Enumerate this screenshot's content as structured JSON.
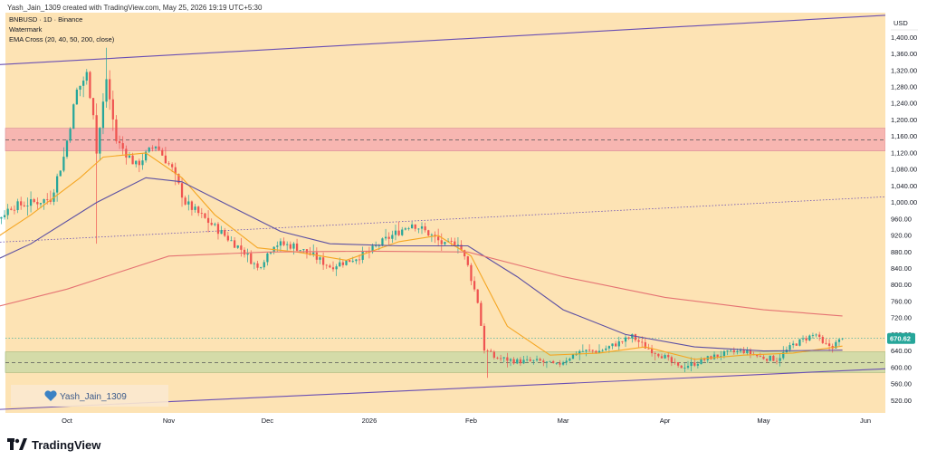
{
  "header": {
    "credit": "Yash_Jain_1309 created with TradingView.com, May 25, 2026 19:19 UTC+5:30",
    "symbol_line": "BNBUSD · 1D · Binance",
    "watermark_label": "Watermark",
    "indicator_label": "EMA Cross (20, 40, 50, 200, close)"
  },
  "watermark_text": "Yash_Jain_1309",
  "brand": {
    "name": "TradingView",
    "icon": "tradingview-logo-icon"
  },
  "currency_label": "USD",
  "colors": {
    "background": "#fde3b4",
    "up": "#26a69a",
    "down": "#ef5350",
    "ema_fast": "#f5a623",
    "ema_mid": "#5b4fa3",
    "ema_slow": "#e57373",
    "channel": "#6a4fb3",
    "resistance_zone": "#f4a7b0",
    "support_zone": "#c5d8a4",
    "price_badge": "#26a69a"
  },
  "chart_data": {
    "type": "candlestick",
    "title": "BNBUSD · 1D · Binance",
    "symbol": "BNBUSD",
    "interval": "1D",
    "exchange": "Binance",
    "ylim": [
      490,
      1460
    ],
    "y_ticks": [
      520,
      560,
      600,
      640,
      680,
      720,
      760,
      800,
      840,
      880,
      920,
      960,
      1000,
      1040,
      1080,
      1120,
      1160,
      1200,
      1240,
      1280,
      1320,
      1360,
      1400
    ],
    "y_tick_labels": [
      "520.00",
      "560.00",
      "600.00",
      "640.00",
      "680.00",
      "720.00",
      "760.00",
      "800.00",
      "840.00",
      "880.00",
      "920.00",
      "960.00",
      "1,000.00",
      "1,040.00",
      "1,080.00",
      "1,120.00",
      "1,160.00",
      "1,200.00",
      "1,240.00",
      "1,280.00",
      "1,320.00",
      "1,360.00",
      "1,400.00"
    ],
    "x_ticks": [
      {
        "label": "Oct",
        "date": "2025-10-01"
      },
      {
        "label": "Nov",
        "date": "2025-11-01"
      },
      {
        "label": "Dec",
        "date": "2025-12-01"
      },
      {
        "label": "2026",
        "date": "2026-01-01"
      },
      {
        "label": "Feb",
        "date": "2026-02-01"
      },
      {
        "label": "Mar",
        "date": "2026-03-01"
      },
      {
        "label": "Apr",
        "date": "2026-04-01"
      },
      {
        "label": "May",
        "date": "2026-05-01"
      },
      {
        "label": "Jun",
        "date": "2026-06-01"
      }
    ],
    "last_price": 670.62,
    "last_price_label": "670.62",
    "price_keypoints": [
      {
        "date": "2025-09-01",
        "close": 915
      },
      {
        "date": "2025-09-08",
        "close": 945
      },
      {
        "date": "2025-09-14",
        "close": 990
      },
      {
        "date": "2025-09-21",
        "close": 1000
      },
      {
        "date": "2025-09-26",
        "close": 1010
      },
      {
        "date": "2025-09-30",
        "close": 1110
      },
      {
        "date": "2025-10-04",
        "close": 1270
      },
      {
        "date": "2025-10-07",
        "close": 1310
      },
      {
        "date": "2025-10-09",
        "close": 1220
      },
      {
        "date": "2025-10-10",
        "close": 1120
      },
      {
        "date": "2025-10-13",
        "close": 1300
      },
      {
        "date": "2025-10-16",
        "close": 1150
      },
      {
        "date": "2025-10-22",
        "close": 1090
      },
      {
        "date": "2025-10-28",
        "close": 1140
      },
      {
        "date": "2025-11-02",
        "close": 1080
      },
      {
        "date": "2025-11-06",
        "close": 1000
      },
      {
        "date": "2025-11-12",
        "close": 960
      },
      {
        "date": "2025-11-18",
        "close": 920
      },
      {
        "date": "2025-11-24",
        "close": 880
      },
      {
        "date": "2025-11-28",
        "close": 840
      },
      {
        "date": "2025-12-03",
        "close": 900
      },
      {
        "date": "2025-12-09",
        "close": 895
      },
      {
        "date": "2025-12-15",
        "close": 870
      },
      {
        "date": "2025-12-20",
        "close": 845
      },
      {
        "date": "2025-12-26",
        "close": 860
      },
      {
        "date": "2026-01-01",
        "close": 880
      },
      {
        "date": "2026-01-06",
        "close": 910
      },
      {
        "date": "2026-01-10",
        "close": 930
      },
      {
        "date": "2026-01-14",
        "close": 950
      },
      {
        "date": "2026-01-19",
        "close": 925
      },
      {
        "date": "2026-01-24",
        "close": 895
      },
      {
        "date": "2026-01-28",
        "close": 905
      },
      {
        "date": "2026-01-31",
        "close": 845
      },
      {
        "date": "2026-02-03",
        "close": 760
      },
      {
        "date": "2026-02-05",
        "close": 645
      },
      {
        "date": "2026-02-08",
        "close": 625
      },
      {
        "date": "2026-02-15",
        "close": 615
      },
      {
        "date": "2026-02-22",
        "close": 615
      },
      {
        "date": "2026-02-27",
        "close": 605
      },
      {
        "date": "2026-03-06",
        "close": 640
      },
      {
        "date": "2026-03-12",
        "close": 640
      },
      {
        "date": "2026-03-18",
        "close": 660
      },
      {
        "date": "2026-03-22",
        "close": 675
      },
      {
        "date": "2026-03-26",
        "close": 650
      },
      {
        "date": "2026-04-01",
        "close": 625
      },
      {
        "date": "2026-04-05",
        "close": 600
      },
      {
        "date": "2026-04-10",
        "close": 610
      },
      {
        "date": "2026-04-15",
        "close": 625
      },
      {
        "date": "2026-04-20",
        "close": 635
      },
      {
        "date": "2026-04-25",
        "close": 640
      },
      {
        "date": "2026-04-30",
        "close": 625
      },
      {
        "date": "2026-05-05",
        "close": 620
      },
      {
        "date": "2026-05-10",
        "close": 655
      },
      {
        "date": "2026-05-15",
        "close": 675
      },
      {
        "date": "2026-05-17",
        "close": 680
      },
      {
        "date": "2026-05-19",
        "close": 655
      },
      {
        "date": "2026-05-22",
        "close": 652
      },
      {
        "date": "2026-05-25",
        "close": 670.62
      }
    ],
    "series": [
      {
        "name": "EMA 20",
        "color": "#f5a623",
        "points": [
          {
            "date": "2025-09-01",
            "y": 870
          },
          {
            "date": "2025-09-20",
            "y": 970
          },
          {
            "date": "2025-10-05",
            "y": 1060
          },
          {
            "date": "2025-10-12",
            "y": 1110
          },
          {
            "date": "2025-10-25",
            "y": 1120
          },
          {
            "date": "2025-11-05",
            "y": 1060
          },
          {
            "date": "2025-11-15",
            "y": 970
          },
          {
            "date": "2025-11-28",
            "y": 890
          },
          {
            "date": "2025-12-10",
            "y": 880
          },
          {
            "date": "2025-12-25",
            "y": 860
          },
          {
            "date": "2026-01-10",
            "y": 905
          },
          {
            "date": "2026-01-22",
            "y": 920
          },
          {
            "date": "2026-02-01",
            "y": 870
          },
          {
            "date": "2026-02-12",
            "y": 700
          },
          {
            "date": "2026-02-25",
            "y": 630
          },
          {
            "date": "2026-03-12",
            "y": 635
          },
          {
            "date": "2026-03-26",
            "y": 650
          },
          {
            "date": "2026-04-10",
            "y": 620
          },
          {
            "date": "2026-04-25",
            "y": 630
          },
          {
            "date": "2026-05-10",
            "y": 635
          },
          {
            "date": "2026-05-25",
            "y": 652
          }
        ]
      },
      {
        "name": "EMA 50",
        "color": "#5b4fa3",
        "points": [
          {
            "date": "2025-09-01",
            "y": 830
          },
          {
            "date": "2025-09-20",
            "y": 900
          },
          {
            "date": "2025-10-10",
            "y": 1000
          },
          {
            "date": "2025-10-25",
            "y": 1060
          },
          {
            "date": "2025-11-05",
            "y": 1050
          },
          {
            "date": "2025-11-20",
            "y": 990
          },
          {
            "date": "2025-12-05",
            "y": 930
          },
          {
            "date": "2025-12-20",
            "y": 900
          },
          {
            "date": "2026-01-10",
            "y": 895
          },
          {
            "date": "2026-01-31",
            "y": 895
          },
          {
            "date": "2026-02-15",
            "y": 820
          },
          {
            "date": "2026-03-01",
            "y": 740
          },
          {
            "date": "2026-03-20",
            "y": 680
          },
          {
            "date": "2026-04-10",
            "y": 650
          },
          {
            "date": "2026-05-01",
            "y": 640
          },
          {
            "date": "2026-05-25",
            "y": 642
          }
        ]
      },
      {
        "name": "EMA 200",
        "color": "#e57373",
        "points": [
          {
            "date": "2025-09-01",
            "y": 730
          },
          {
            "date": "2025-10-01",
            "y": 790
          },
          {
            "date": "2025-11-01",
            "y": 870
          },
          {
            "date": "2025-12-01",
            "y": 880
          },
          {
            "date": "2026-01-01",
            "y": 882
          },
          {
            "date": "2026-01-31",
            "y": 880
          },
          {
            "date": "2026-03-01",
            "y": 820
          },
          {
            "date": "2026-04-01",
            "y": 770
          },
          {
            "date": "2026-05-01",
            "y": 740
          },
          {
            "date": "2026-05-25",
            "y": 725
          }
        ]
      }
    ],
    "annotations": [
      {
        "kind": "zone",
        "name": "resistance",
        "from": 1125,
        "to": 1180,
        "midline": 1152
      },
      {
        "kind": "zone",
        "name": "support",
        "from": 588,
        "to": 638,
        "midline": 612
      },
      {
        "kind": "trendline",
        "name": "upper-channel",
        "start": {
          "date": "2025-09-01",
          "y": 1330
        },
        "end": {
          "date": "2026-06-10",
          "y": 1455
        }
      },
      {
        "kind": "trendline",
        "name": "lower-channel",
        "start": {
          "date": "2025-09-01",
          "y": 495
        },
        "end": {
          "date": "2026-06-10",
          "y": 598
        }
      },
      {
        "kind": "trendline",
        "name": "dotted-trend",
        "start": {
          "date": "2025-09-01",
          "y": 900
        },
        "end": {
          "date": "2026-06-10",
          "y": 1015
        }
      },
      {
        "kind": "hline",
        "name": "last-price-dotted",
        "y": 670.62
      }
    ],
    "grid": false,
    "legend": "top-left"
  }
}
